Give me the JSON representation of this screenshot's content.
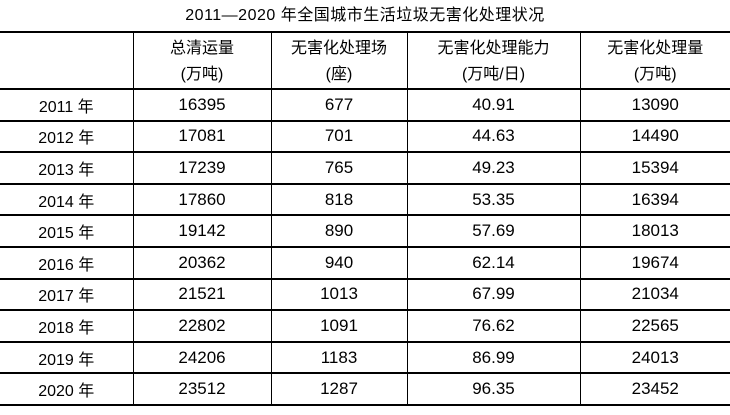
{
  "title": "2011—2020 年全国城市生活垃圾无害化处理状况",
  "table": {
    "columns": [
      {
        "name": "",
        "unit": ""
      },
      {
        "name": "总清运量",
        "unit": "(万吨)"
      },
      {
        "name": "无害化处理场",
        "unit": "(座)"
      },
      {
        "name": "无害化处理能力",
        "unit": "(万吨/日)"
      },
      {
        "name": "无害化处理量",
        "unit": "(万吨)"
      }
    ],
    "rows": [
      {
        "year": "2011 年",
        "values": [
          "16395",
          "677",
          "40.91",
          "13090"
        ]
      },
      {
        "year": "2012 年",
        "values": [
          "17081",
          "701",
          "44.63",
          "14490"
        ]
      },
      {
        "year": "2013 年",
        "values": [
          "17239",
          "765",
          "49.23",
          "15394"
        ]
      },
      {
        "year": "2014 年",
        "values": [
          "17860",
          "818",
          "53.35",
          "16394"
        ]
      },
      {
        "year": "2015 年",
        "values": [
          "19142",
          "890",
          "57.69",
          "18013"
        ]
      },
      {
        "year": "2016 年",
        "values": [
          "20362",
          "940",
          "62.14",
          "19674"
        ]
      },
      {
        "year": "2017 年",
        "values": [
          "21521",
          "1013",
          "67.99",
          "21034"
        ]
      },
      {
        "year": "2018 年",
        "values": [
          "22802",
          "1091",
          "76.62",
          "22565"
        ]
      },
      {
        "year": "2019 年",
        "values": [
          "24206",
          "1183",
          "86.99",
          "24013"
        ]
      },
      {
        "year": "2020 年",
        "values": [
          "23512",
          "1287",
          "96.35",
          "23452"
        ]
      }
    ]
  },
  "colors": {
    "text": "#000000",
    "border": "#000000",
    "background": "#ffffff"
  },
  "chart_data": {
    "type": "table",
    "title": "2011—2020 年全国城市生活垃圾无害化处理状况",
    "categories": [
      "2011年",
      "2012年",
      "2013年",
      "2014年",
      "2015年",
      "2016年",
      "2017年",
      "2018年",
      "2019年",
      "2020年"
    ],
    "series": [
      {
        "name": "总清运量(万吨)",
        "values": [
          16395,
          17081,
          17239,
          17860,
          19142,
          20362,
          21521,
          22802,
          24206,
          23512
        ]
      },
      {
        "name": "无害化处理场(座)",
        "values": [
          677,
          701,
          765,
          818,
          890,
          940,
          1013,
          1091,
          1183,
          1287
        ]
      },
      {
        "name": "无害化处理能力(万吨/日)",
        "values": [
          40.91,
          44.63,
          49.23,
          53.35,
          57.69,
          62.14,
          67.99,
          76.62,
          86.99,
          96.35
        ]
      },
      {
        "name": "无害化处理量(万吨)",
        "values": [
          13090,
          14490,
          15394,
          16394,
          18013,
          19674,
          21034,
          22565,
          24013,
          23452
        ]
      }
    ]
  }
}
